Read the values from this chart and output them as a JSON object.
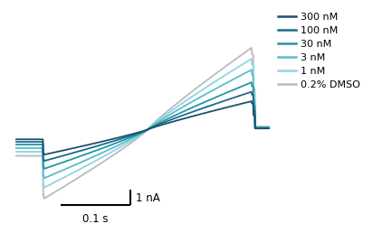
{
  "legend_labels": [
    "300 nM",
    "100 nM",
    "30 nM",
    "3 nM",
    "1 nM",
    "0.2% DMSO"
  ],
  "line_colors": [
    "#1b4f72",
    "#1a6b8a",
    "#2196a8",
    "#5bbccc",
    "#90d4e4",
    "#bbbbbb"
  ],
  "line_widths": [
    1.3,
    1.3,
    1.3,
    1.3,
    1.3,
    1.3
  ],
  "scalebar_x_label": "0.1 s",
  "scalebar_y_label": "1 nA",
  "background_color": "#ffffff",
  "inward_peaks": [
    -1.6,
    -2.0,
    -2.5,
    -3.1,
    -3.7,
    -4.4
  ],
  "outward_peaks": [
    1.8,
    2.4,
    3.0,
    3.8,
    4.5,
    5.2
  ],
  "pre_hold": [
    -0.62,
    -0.78,
    -0.95,
    -1.18,
    -1.41,
    -1.67
  ],
  "post_hold": [
    0.07,
    0.09,
    0.11,
    0.14,
    0.17,
    0.2
  ]
}
